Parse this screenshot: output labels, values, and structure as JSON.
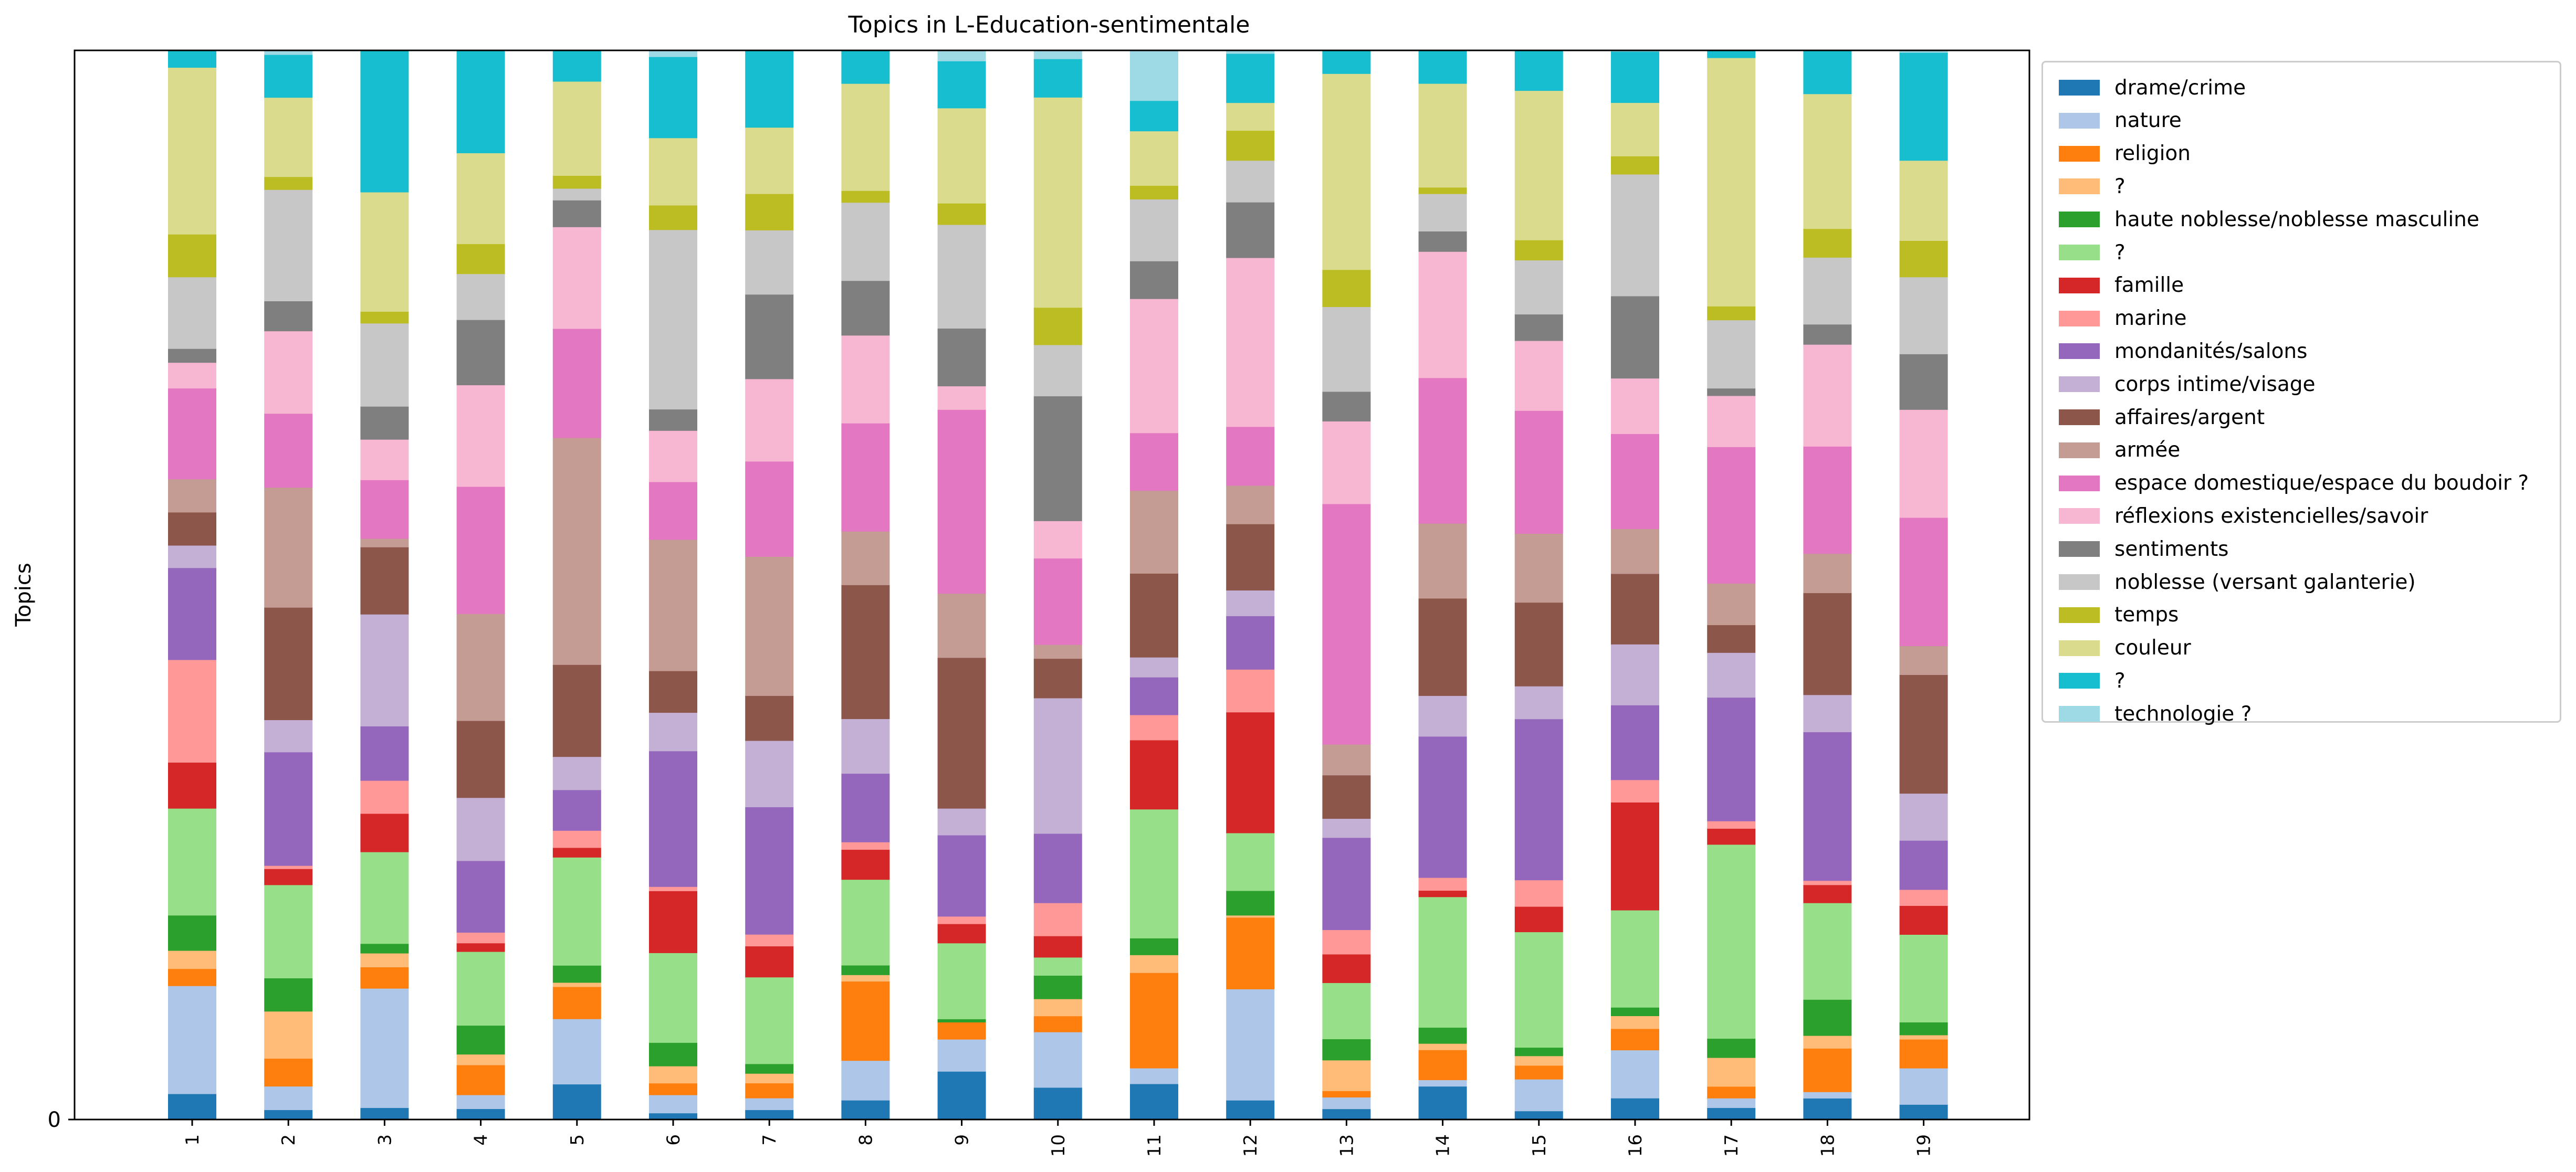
{
  "chart_data": {
    "type": "bar",
    "stacked": true,
    "normalized": true,
    "title": "Topics in L-Education-sentimentale",
    "ylabel": "Topics",
    "xlabel": "",
    "y_tick_labels": [
      "0"
    ],
    "legend_position": "outside-right",
    "categories": [
      "1",
      "2",
      "3",
      "4",
      "5",
      "6",
      "7",
      "8",
      "9",
      "10",
      "11",
      "12",
      "13",
      "14",
      "15",
      "16",
      "17",
      "18",
      "19"
    ],
    "series": [
      {
        "name": "drame/crime",
        "color": "#1f77b4",
        "values": [
          24,
          9,
          11,
          10,
          33,
          6,
          9,
          18,
          45,
          30,
          34,
          18,
          10,
          31,
          8,
          20,
          11,
          20,
          14
        ]
      },
      {
        "name": "nature",
        "color": "#aec7e8",
        "values": [
          101,
          22,
          112,
          13,
          61,
          17,
          11,
          37,
          30,
          52,
          15,
          104,
          11,
          6,
          30,
          45,
          9,
          6,
          34
        ]
      },
      {
        "name": "religion",
        "color": "#ff7f0e",
        "values": [
          16,
          26,
          20,
          28,
          30,
          11,
          14,
          74,
          16,
          15,
          91,
          67,
          6,
          28,
          13,
          20,
          11,
          41,
          27
        ]
      },
      {
        "name": "?",
        "color": "#ffbb78",
        "values": [
          17,
          44,
          13,
          10,
          4,
          16,
          9,
          6,
          0,
          16,
          17,
          2,
          29,
          6,
          9,
          12,
          27,
          12,
          4
        ]
      },
      {
        "name": "haute noblesse/noblesse masculine",
        "color": "#2ca02c",
        "values": [
          33,
          31,
          9,
          27,
          16,
          22,
          9,
          9,
          3,
          22,
          16,
          23,
          20,
          15,
          8,
          8,
          18,
          34,
          12
        ]
      },
      {
        "name": "?",
        "color": "#98df8a",
        "values": [
          100,
          87,
          86,
          69,
          101,
          84,
          81,
          80,
          71,
          17,
          123,
          54,
          53,
          122,
          109,
          91,
          182,
          91,
          82
        ]
      },
      {
        "name": "famille",
        "color": "#d62728",
        "values": [
          43,
          15,
          36,
          8,
          9,
          58,
          29,
          28,
          18,
          20,
          66,
          113,
          27,
          6,
          24,
          101,
          15,
          17,
          27
        ]
      },
      {
        "name": "marine",
        "color": "#ff9896",
        "values": [
          96,
          3,
          31,
          10,
          16,
          4,
          11,
          7,
          7,
          31,
          24,
          40,
          23,
          12,
          25,
          21,
          7,
          4,
          15
        ]
      },
      {
        "name": "mondanités/salons",
        "color": "#9467bd",
        "values": [
          86,
          106,
          51,
          67,
          38,
          127,
          119,
          64,
          76,
          65,
          36,
          50,
          87,
          132,
          152,
          70,
          116,
          140,
          46
        ]
      },
      {
        "name": "corps intime/visage",
        "color": "#c5b0d5",
        "values": [
          21,
          30,
          105,
          59,
          31,
          36,
          62,
          51,
          25,
          127,
          19,
          24,
          18,
          38,
          31,
          57,
          42,
          35,
          44
        ]
      },
      {
        "name": "affaires/argent",
        "color": "#8c564b",
        "values": [
          31,
          105,
          63,
          72,
          86,
          39,
          42,
          125,
          141,
          37,
          80,
          62,
          41,
          91,
          79,
          66,
          26,
          96,
          111
        ]
      },
      {
        "name": "armée",
        "color": "#c49c94",
        "values": [
          31,
          112,
          8,
          100,
          212,
          123,
          130,
          50,
          60,
          13,
          79,
          36,
          29,
          70,
          65,
          42,
          39,
          37,
          27
        ]
      },
      {
        "name": "espace domestique/espace du boudoir ?",
        "color": "#e377c2",
        "values": [
          85,
          69,
          55,
          119,
          102,
          54,
          89,
          101,
          172,
          81,
          55,
          55,
          227,
          136,
          116,
          89,
          128,
          101,
          120
        ]
      },
      {
        "name": "réflexions existencielles/savoir",
        "color": "#f7b6d2",
        "values": [
          24,
          77,
          38,
          95,
          95,
          48,
          77,
          82,
          22,
          35,
          128,
          158,
          78,
          118,
          66,
          52,
          48,
          96,
          101
        ]
      },
      {
        "name": "sentiments",
        "color": "#7f7f7f",
        "values": [
          13,
          28,
          31,
          61,
          25,
          20,
          79,
          51,
          54,
          117,
          36,
          52,
          28,
          19,
          25,
          77,
          7,
          19,
          52
        ]
      },
      {
        "name": "noblesse (versant galanterie)",
        "color": "#c7c7c7",
        "values": [
          67,
          104,
          78,
          43,
          11,
          168,
          60,
          73,
          97,
          48,
          59,
          39,
          80,
          35,
          51,
          114,
          64,
          63,
          72
        ]
      },
      {
        "name": "temps",
        "color": "#bcbd22",
        "values": [
          40,
          12,
          11,
          28,
          12,
          23,
          34,
          11,
          20,
          35,
          13,
          28,
          35,
          6,
          19,
          17,
          13,
          27,
          34
        ]
      },
      {
        "name": "couleur",
        "color": "#dbdb8d",
        "values": [
          156,
          74,
          112,
          85,
          88,
          63,
          62,
          100,
          89,
          197,
          52,
          26,
          185,
          97,
          141,
          50,
          233,
          127,
          75
        ]
      },
      {
        "name": "?",
        "color": "#17becf",
        "values": [
          16,
          40,
          133,
          96,
          29,
          76,
          72,
          31,
          44,
          36,
          29,
          46,
          22,
          31,
          38,
          48,
          7,
          41,
          101
        ]
      },
      {
        "name": "technologie ?",
        "color": "#9edae5",
        "values": [
          0,
          4,
          0,
          0,
          0,
          6,
          0,
          0,
          10,
          8,
          48,
          3,
          0,
          0,
          0,
          1,
          0,
          0,
          2
        ]
      }
    ]
  }
}
